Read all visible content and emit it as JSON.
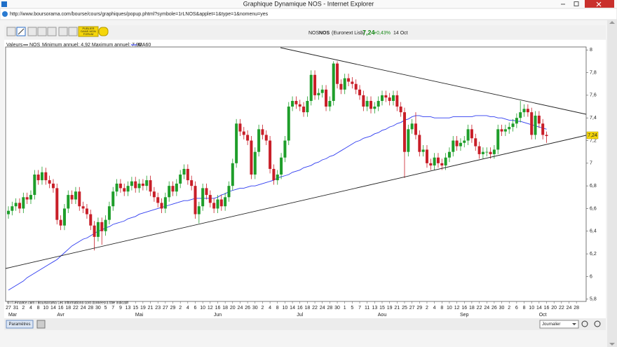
{
  "window": {
    "title": "Graphique Dynamique NOS - Internet Explorer",
    "url": "http://www.boursorama.com/bourse/cours/graphiques/popup.phtml?symbole=1rLNOS&applet=1&type=1&nomenu=yes"
  },
  "toolbar": {
    "publish": [
      "PUBLIER",
      "DANS MON",
      "FORUM"
    ]
  },
  "quote": {
    "name": "NOS",
    "market": "(Euronext Lisb)",
    "price": "7,24",
    "change": "+0,43%",
    "date": "14 Oct"
  },
  "legend": {
    "prefix": "Valeurs",
    "annual_range": "Minimum annuel: 4,92 Maximum annuel: 7,90"
  },
  "footer": {
    "credit": "© IT-Finance.com / Boursorama Les informations sont données à titre indicatif",
    "settings_button": "Paramètres",
    "period": "Journalier"
  },
  "chart_data": {
    "type": "candlestick",
    "categories": [
      "27",
      null,
      "31",
      null,
      "2",
      null,
      "4",
      null,
      "8",
      null,
      "10",
      null,
      "14",
      null,
      "16",
      null,
      "18",
      null,
      "22",
      null,
      "24",
      null,
      "28",
      null,
      "30",
      null,
      "5",
      null,
      "7",
      null,
      "9",
      null,
      "13",
      null,
      "15",
      null,
      "19",
      null,
      "21",
      null,
      "23",
      null,
      "27",
      null,
      "29",
      null,
      "2",
      null,
      "4",
      null,
      "6",
      null,
      "10",
      null,
      "12",
      null,
      "16",
      null,
      "18",
      null,
      "20",
      null,
      "24",
      null,
      "26",
      null,
      "30",
      null,
      "2",
      null,
      "4",
      null,
      "8",
      null,
      "10",
      null,
      "14",
      null,
      "16",
      null,
      "18",
      null,
      "22",
      null,
      "24",
      null,
      "28",
      null,
      "30",
      null,
      "1",
      null,
      "5",
      null,
      "7",
      null,
      "11",
      null,
      "13",
      null,
      "15",
      null,
      "19",
      null,
      "21",
      null,
      "25",
      null,
      "27",
      null,
      "29",
      null,
      "2",
      null,
      "4",
      null,
      "8",
      null,
      "10",
      null,
      "12",
      null,
      "16",
      null,
      "18",
      null,
      "22",
      null,
      "24",
      null,
      "26",
      null,
      "30",
      null,
      "2",
      null,
      "6",
      null,
      "8",
      null,
      "10",
      null,
      "14",
      null,
      "16",
      null,
      "20",
      null,
      "22",
      null,
      "24",
      null,
      "28"
    ],
    "months": [
      "Mar",
      "Avr",
      "Mai",
      "Jun",
      "Jul",
      "Aou",
      "Sep",
      "Oct"
    ],
    "series": [
      {
        "name": "NOS",
        "up_color": "#1e9e2a",
        "down_color": "#c81e28",
        "open": [
          6.55,
          6.58,
          6.62,
          6.65,
          6.6,
          6.7,
          6.68,
          6.72,
          6.9,
          6.85,
          6.92,
          6.85,
          6.82,
          6.78,
          6.5,
          6.45,
          6.6,
          6.72,
          6.68,
          6.75,
          6.62,
          6.6,
          6.55,
          6.45,
          6.35,
          6.48,
          6.4,
          6.5,
          6.62,
          6.75,
          6.82,
          6.78,
          6.75,
          6.8,
          6.84,
          6.78,
          6.82,
          6.8,
          6.85,
          6.75,
          6.7,
          6.65,
          6.6,
          6.7,
          6.8,
          6.75,
          6.82,
          6.9,
          6.95,
          6.85,
          6.8,
          6.55,
          6.62,
          6.78,
          6.72,
          6.65,
          6.6,
          6.68,
          6.62,
          6.7,
          6.8,
          7.0,
          7.35,
          7.28,
          7.25,
          7.2,
          6.9,
          7.1,
          7.3,
          7.25,
          7.2,
          6.95,
          6.85,
          6.9,
          7.05,
          7.2,
          7.5,
          7.55,
          7.52,
          7.5,
          7.45,
          7.55,
          7.78,
          7.6,
          7.62,
          7.65,
          7.5,
          7.55,
          7.88,
          7.7,
          7.65,
          7.75,
          7.72,
          7.7,
          7.65,
          7.6,
          7.5,
          7.55,
          7.48,
          7.5,
          7.55,
          7.6,
          7.58,
          7.55,
          7.6,
          7.5,
          7.45,
          7.1,
          7.3,
          7.35,
          7.25,
          7.1,
          7.12,
          7.0,
          6.98,
          7.05,
          7.0,
          6.98,
          7.05,
          7.1,
          7.2,
          7.15,
          7.18,
          7.2,
          7.3,
          7.22,
          7.15,
          7.08,
          7.1,
          7.1,
          7.08,
          7.12,
          7.3,
          7.28,
          7.3,
          7.32,
          7.35,
          7.4,
          7.45,
          7.48,
          7.45,
          7.25,
          7.42,
          7.35,
          7.25,
          null,
          null,
          null,
          null,
          null,
          null,
          null,
          null
        ],
        "high": [
          6.62,
          6.66,
          6.69,
          6.69,
          6.74,
          6.74,
          6.76,
          6.94,
          6.94,
          6.97,
          6.96,
          6.89,
          6.86,
          6.82,
          6.54,
          6.64,
          6.76,
          6.76,
          6.79,
          6.79,
          6.66,
          6.64,
          6.59,
          6.49,
          6.52,
          6.52,
          6.54,
          6.66,
          6.79,
          6.86,
          6.86,
          6.82,
          6.84,
          6.88,
          6.88,
          6.86,
          6.86,
          6.89,
          6.89,
          6.79,
          6.74,
          6.69,
          6.74,
          6.84,
          6.84,
          6.86,
          6.94,
          6.99,
          6.99,
          6.89,
          6.84,
          6.66,
          6.82,
          6.82,
          6.76,
          6.69,
          6.72,
          6.72,
          6.74,
          6.84,
          7.04,
          7.39,
          7.39,
          7.32,
          7.29,
          7.24,
          7.14,
          7.34,
          7.34,
          7.29,
          7.24,
          6.99,
          6.94,
          7.09,
          7.24,
          7.54,
          7.59,
          7.59,
          7.56,
          7.54,
          7.59,
          7.82,
          7.82,
          7.66,
          7.69,
          7.69,
          7.59,
          7.9,
          7.9,
          7.74,
          7.79,
          7.79,
          7.76,
          7.74,
          7.69,
          7.64,
          7.59,
          7.59,
          7.54,
          7.59,
          7.64,
          7.64,
          7.62,
          7.64,
          7.64,
          7.54,
          7.49,
          7.34,
          7.39,
          7.45,
          7.29,
          7.16,
          7.16,
          7.04,
          7.09,
          7.09,
          7.04,
          7.09,
          7.14,
          7.24,
          7.24,
          7.22,
          7.24,
          7.34,
          7.34,
          7.26,
          7.19,
          7.14,
          7.14,
          7.14,
          7.16,
          7.34,
          7.34,
          7.34,
          7.36,
          7.39,
          7.44,
          7.55,
          7.52,
          7.52,
          7.49,
          7.46,
          7.46,
          7.39,
          7.28,
          null,
          null,
          null,
          null,
          null,
          null,
          null,
          null
        ],
        "low": [
          6.51,
          6.54,
          6.58,
          6.56,
          6.56,
          6.64,
          6.64,
          6.68,
          6.81,
          6.81,
          6.81,
          6.78,
          6.74,
          6.46,
          6.41,
          6.41,
          6.56,
          6.64,
          6.64,
          6.58,
          6.56,
          6.51,
          6.41,
          6.23,
          6.31,
          6.28,
          6.36,
          6.46,
          6.58,
          6.71,
          6.74,
          6.71,
          6.71,
          6.76,
          6.74,
          6.74,
          6.76,
          6.76,
          6.71,
          6.66,
          6.61,
          6.56,
          6.56,
          6.66,
          6.71,
          6.71,
          6.78,
          6.86,
          6.81,
          6.76,
          6.51,
          6.47,
          6.58,
          6.68,
          6.61,
          6.56,
          6.56,
          6.58,
          6.58,
          6.66,
          6.76,
          6.96,
          7.24,
          7.21,
          7.16,
          6.86,
          6.86,
          7.06,
          7.21,
          7.16,
          6.91,
          6.81,
          6.81,
          6.86,
          7.01,
          7.16,
          7.46,
          7.48,
          7.46,
          7.41,
          7.41,
          7.51,
          7.56,
          7.56,
          7.58,
          7.46,
          7.46,
          7.51,
          7.66,
          7.61,
          7.61,
          7.68,
          7.66,
          7.61,
          7.56,
          7.46,
          7.46,
          7.44,
          7.44,
          7.46,
          7.51,
          7.54,
          7.51,
          7.51,
          7.46,
          7.41,
          6.87,
          7.06,
          7.26,
          7.21,
          7.06,
          7.06,
          6.96,
          6.94,
          6.94,
          6.96,
          6.94,
          6.94,
          7.01,
          7.06,
          7.11,
          7.11,
          7.14,
          7.16,
          7.18,
          7.11,
          7.04,
          7.04,
          7.06,
          7.04,
          7.04,
          7.08,
          7.24,
          7.24,
          7.26,
          7.28,
          7.31,
          7.36,
          7.41,
          7.41,
          7.21,
          7.21,
          7.31,
          7.21,
          7.18,
          null,
          null,
          null,
          null,
          null,
          null,
          null,
          null
        ],
        "close": [
          6.58,
          6.62,
          6.65,
          6.6,
          6.7,
          6.68,
          6.72,
          6.9,
          6.85,
          6.92,
          6.85,
          6.82,
          6.78,
          6.5,
          6.45,
          6.6,
          6.72,
          6.68,
          6.75,
          6.62,
          6.6,
          6.55,
          6.45,
          6.35,
          6.48,
          6.4,
          6.5,
          6.62,
          6.75,
          6.82,
          6.78,
          6.75,
          6.8,
          6.84,
          6.78,
          6.82,
          6.8,
          6.85,
          6.75,
          6.7,
          6.65,
          6.6,
          6.7,
          6.8,
          6.75,
          6.82,
          6.9,
          6.95,
          6.85,
          6.8,
          6.55,
          6.62,
          6.78,
          6.72,
          6.65,
          6.6,
          6.68,
          6.62,
          6.7,
          6.8,
          7.0,
          7.35,
          7.28,
          7.25,
          7.2,
          6.9,
          7.1,
          7.3,
          7.25,
          7.2,
          6.95,
          6.85,
          6.9,
          7.05,
          7.2,
          7.5,
          7.55,
          7.52,
          7.5,
          7.45,
          7.55,
          7.78,
          7.6,
          7.62,
          7.65,
          7.5,
          7.55,
          7.88,
          7.7,
          7.65,
          7.75,
          7.72,
          7.7,
          7.65,
          7.6,
          7.5,
          7.55,
          7.48,
          7.5,
          7.55,
          7.6,
          7.58,
          7.55,
          7.6,
          7.5,
          7.45,
          7.1,
          7.3,
          7.35,
          7.25,
          7.1,
          7.12,
          7.0,
          6.98,
          7.05,
          7.0,
          6.98,
          7.05,
          7.1,
          7.2,
          7.15,
          7.18,
          7.2,
          7.3,
          7.22,
          7.15,
          7.08,
          7.1,
          7.1,
          7.08,
          7.12,
          7.3,
          7.28,
          7.3,
          7.32,
          7.35,
          7.4,
          7.45,
          7.48,
          7.45,
          7.25,
          7.42,
          7.35,
          7.25,
          7.24,
          null,
          null,
          null,
          null,
          null,
          null,
          null,
          null
        ]
      },
      {
        "name": "MA60",
        "color": "#2f3cf0",
        "values": [
          5.88,
          5.9,
          5.92,
          5.94,
          5.96,
          5.99,
          6.01,
          6.03,
          6.05,
          6.07,
          6.09,
          6.11,
          6.13,
          6.15,
          6.18,
          6.21,
          6.24,
          6.27,
          6.29,
          6.31,
          6.33,
          6.34,
          6.36,
          6.38,
          6.4,
          6.41,
          6.43,
          6.44,
          6.46,
          6.47,
          6.48,
          6.49,
          6.51,
          6.52,
          6.53,
          6.55,
          6.56,
          6.57,
          6.58,
          6.59,
          6.6,
          6.61,
          6.62,
          6.63,
          6.64,
          6.65,
          6.66,
          6.67,
          6.67,
          6.68,
          6.69,
          6.69,
          6.69,
          6.69,
          6.69,
          6.69,
          6.7,
          6.72,
          6.73,
          6.75,
          6.76,
          6.77,
          6.78,
          6.78,
          6.79,
          6.8,
          6.8,
          6.81,
          6.82,
          6.83,
          6.84,
          6.85,
          6.87,
          6.88,
          6.89,
          6.9,
          6.92,
          6.93,
          6.94,
          6.96,
          6.97,
          6.98,
          7.0,
          7.01,
          7.03,
          7.04,
          7.06,
          7.07,
          7.09,
          7.11,
          7.13,
          7.15,
          7.17,
          7.19,
          7.2,
          7.22,
          7.23,
          7.24,
          7.26,
          7.27,
          7.29,
          7.3,
          7.32,
          7.33,
          7.35,
          7.36,
          7.38,
          7.39,
          7.41,
          7.42,
          7.42,
          7.41,
          7.41,
          7.41,
          7.4,
          7.4,
          7.4,
          7.4,
          7.4,
          7.41,
          7.41,
          7.41,
          7.41,
          7.41,
          7.41,
          7.42,
          7.42,
          7.42,
          7.42,
          7.41,
          7.41,
          7.4,
          7.4,
          7.39,
          7.38,
          7.38,
          7.37,
          7.37,
          7.36,
          7.35,
          7.34,
          7.33,
          7.32,
          7.31,
          7.3,
          null,
          null,
          null,
          null,
          null,
          null,
          null,
          null
        ]
      }
    ],
    "ylim": [
      5.78,
      8.02
    ],
    "yticks": [
      {
        "value": 5.8,
        "label": "5,8"
      },
      6,
      {
        "value": 6.2,
        "label": "6,2"
      },
      {
        "value": 6.4,
        "label": "6,4"
      },
      {
        "value": 6.6,
        "label": "6,6"
      },
      {
        "value": 6.8,
        "label": "6,8"
      },
      7,
      {
        "value": 7.2,
        "label": "7,2"
      },
      {
        "value": 7.4,
        "label": "7,4"
      },
      {
        "value": 7.6,
        "label": "7,6"
      },
      {
        "value": 7.8,
        "label": "7,8"
      },
      8
    ],
    "grid": false
  }
}
